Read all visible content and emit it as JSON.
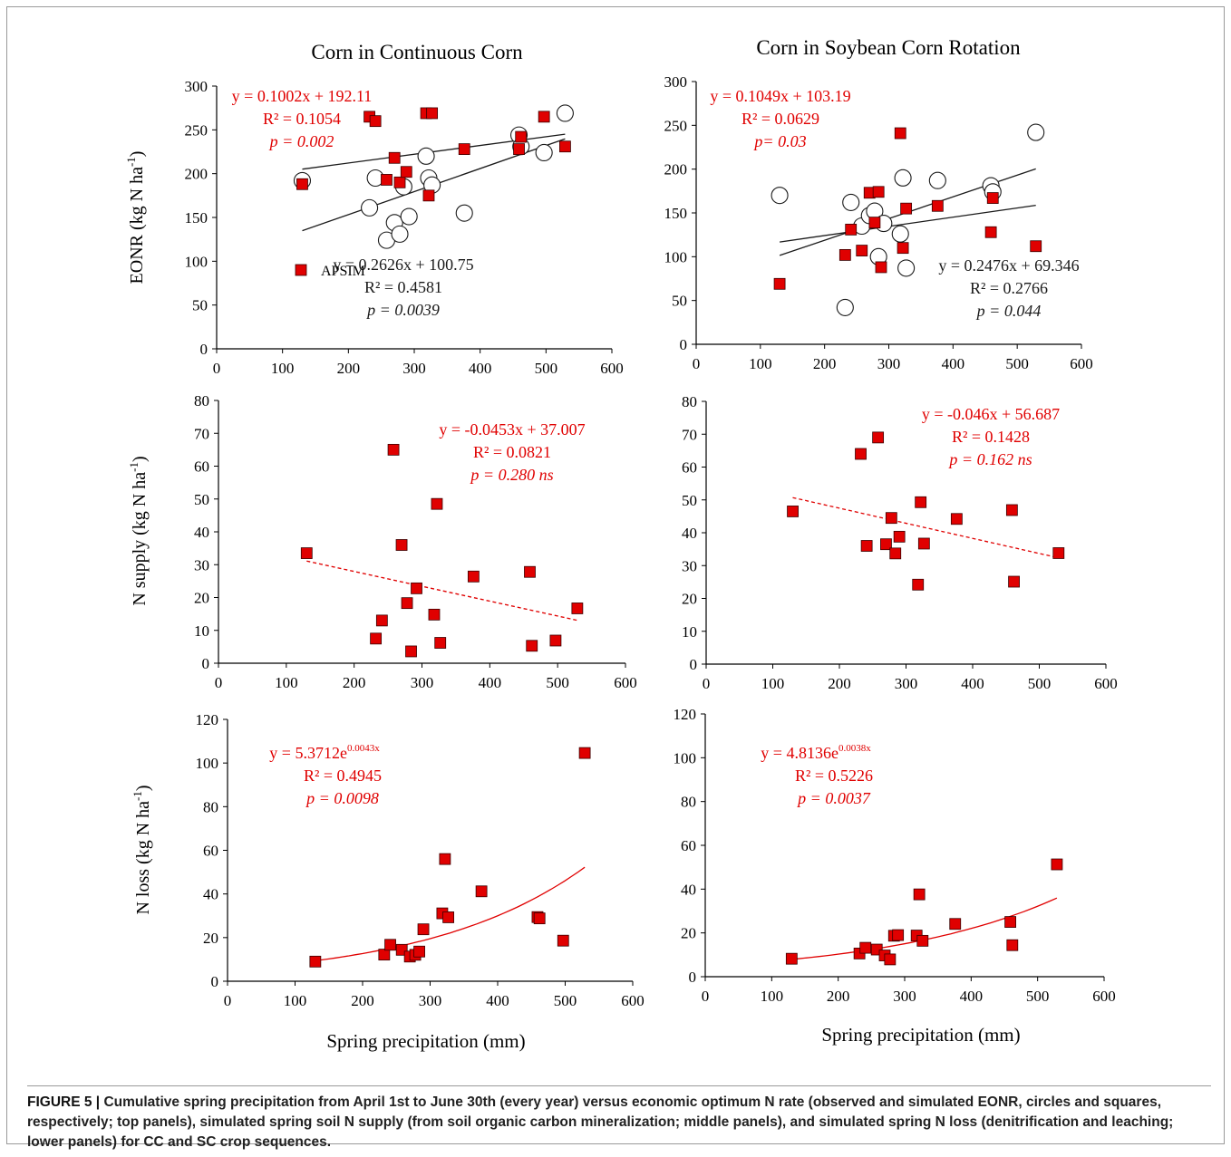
{
  "figure": {
    "column_titles": [
      "Corn in Continuous Corn",
      "Corn in Soybean  Corn Rotation"
    ],
    "row_labels": [
      "EONR (kg N ha-1)",
      "N supply  (kg N ha-1)",
      "N loss  (kg N ha-1)"
    ],
    "xlabel": "Spring precipitation (mm)",
    "legend_label": "APSIM",
    "colors": {
      "simulated": "#e00000",
      "fit_red": "#e00000",
      "fit_black": "#1a1a1a",
      "observed_fill": "#ffffff"
    }
  },
  "caption": {
    "label": "FIGURE 5 |",
    "text": "Cumulative spring precipitation from April 1st to June 30th (every year) versus economic optimum N rate (observed and simulated EONR, circles and squares, respectively; top panels), simulated spring soil N supply (from soil organic carbon mineralization; middle panels), and simulated spring N loss (denitrification and leaching; lower panels) for CC and SC crop sequences."
  },
  "chart_data": [
    {
      "type": "scatter",
      "panel": "CC-EONR",
      "title": "Corn in Continuous Corn",
      "xlabel": "",
      "ylabel": "EONR (kg N ha-1)",
      "xlim": [
        0,
        600
      ],
      "ylim": [
        0,
        300
      ],
      "xticks": [
        0,
        100,
        200,
        300,
        400,
        500,
        600
      ],
      "yticks": [
        0,
        50,
        100,
        150,
        200,
        250,
        300
      ],
      "series": [
        {
          "name": "APSIM",
          "marker": "square",
          "points": [
            [
              130,
              188
            ],
            [
              232,
              265
            ],
            [
              241,
              260
            ],
            [
              258,
              193
            ],
            [
              270,
              218
            ],
            [
              278,
              190
            ],
            [
              288,
              202
            ],
            [
              318,
              269
            ],
            [
              322,
              175
            ],
            [
              327,
              269
            ],
            [
              376,
              228
            ],
            [
              459,
              228
            ],
            [
              462,
              242
            ],
            [
              497,
              265
            ],
            [
              529,
              231
            ]
          ]
        },
        {
          "marker": "circle",
          "points": [
            [
              130,
              192
            ],
            [
              232,
              161
            ],
            [
              241,
              195
            ],
            [
              258,
              124
            ],
            [
              270,
              144
            ],
            [
              278,
              131
            ],
            [
              284,
              185
            ],
            [
              292,
              151
            ],
            [
              318,
              220
            ],
            [
              322,
              195
            ],
            [
              327,
              187
            ],
            [
              376,
              155
            ],
            [
              459,
              244
            ],
            [
              462,
              231
            ],
            [
              497,
              224
            ],
            [
              529,
              269
            ]
          ]
        }
      ],
      "fits": [
        {
          "color": "red",
          "kind": "linear",
          "slope": 0.1002,
          "intercept": 192.11,
          "range": [
            130,
            529
          ],
          "draw": false,
          "label": [
            "y = 0.1002x + 192.11",
            "R² = 0.1054",
            "p = 0.002"
          ]
        },
        {
          "color": "black",
          "kind": "linear",
          "slope": 0.1002,
          "intercept": 192.11,
          "range": [
            130,
            529
          ],
          "draw": true
        },
        {
          "color": "black",
          "kind": "linear",
          "slope": 0.2626,
          "intercept": 100.75,
          "range": [
            130,
            529
          ],
          "draw": true,
          "label": [
            "y = 0.2626x + 100.75",
            "R² = 0.4581",
            "p = 0.0039"
          ]
        }
      ]
    },
    {
      "type": "scatter",
      "panel": "SC-EONR",
      "title": "Corn in Soybean  Corn Rotation",
      "xlabel": "",
      "ylabel": "",
      "xlim": [
        0,
        600
      ],
      "ylim": [
        0,
        300
      ],
      "xticks": [
        0,
        100,
        200,
        300,
        400,
        500,
        600
      ],
      "yticks": [
        0,
        50,
        100,
        150,
        200,
        250,
        300
      ],
      "series": [
        {
          "marker": "square",
          "points": [
            [
              130,
              69
            ],
            [
              232,
              102
            ],
            [
              241,
              131
            ],
            [
              258,
              107
            ],
            [
              270,
              173
            ],
            [
              278,
              139
            ],
            [
              284,
              174
            ],
            [
              288,
              88
            ],
            [
              318,
              241
            ],
            [
              322,
              110
            ],
            [
              327,
              155
            ],
            [
              376,
              158
            ],
            [
              459,
              128
            ],
            [
              462,
              167
            ],
            [
              529,
              112
            ]
          ]
        },
        {
          "marker": "circle",
          "points": [
            [
              130,
              170
            ],
            [
              232,
              42
            ],
            [
              241,
              162
            ],
            [
              258,
              135
            ],
            [
              270,
              147
            ],
            [
              278,
              152
            ],
            [
              284,
              100
            ],
            [
              292,
              138
            ],
            [
              318,
              126
            ],
            [
              322,
              190
            ],
            [
              327,
              87
            ],
            [
              376,
              187
            ],
            [
              459,
              181
            ],
            [
              462,
              174
            ],
            [
              529,
              242
            ]
          ]
        }
      ],
      "fits": [
        {
          "color": "red",
          "kind": "linear",
          "slope": 0.1049,
          "intercept": 103.19,
          "range": [
            130,
            529
          ],
          "draw": false,
          "label": [
            "y = 0.1049x + 103.19",
            "R² = 0.0629",
            "p= 0.03"
          ]
        },
        {
          "color": "black",
          "kind": "linear",
          "slope": 0.1049,
          "intercept": 103.19,
          "range": [
            130,
            529
          ],
          "draw": true
        },
        {
          "color": "black",
          "kind": "linear",
          "slope": 0.2476,
          "intercept": 69.346,
          "range": [
            130,
            529
          ],
          "draw": true,
          "label": [
            "y = 0.2476x + 69.346",
            "R² = 0.2766",
            "p = 0.044"
          ]
        }
      ]
    },
    {
      "type": "scatter",
      "panel": "CC-Nsupply",
      "xlabel": "",
      "ylabel": "N supply  (kg N ha-1)",
      "xlim": [
        0,
        600
      ],
      "ylim": [
        0,
        80
      ],
      "xticks": [
        0,
        100,
        200,
        300,
        400,
        500,
        600
      ],
      "yticks": [
        0,
        10,
        20,
        30,
        40,
        50,
        60,
        70,
        80
      ],
      "series": [
        {
          "marker": "square",
          "points": [
            [
              130,
              33.5
            ],
            [
              232,
              7.5
            ],
            [
              241,
              13
            ],
            [
              258,
              65
            ],
            [
              270,
              36
            ],
            [
              278,
              18.3
            ],
            [
              284,
              3.6
            ],
            [
              292,
              22.8
            ],
            [
              318,
              14.8
            ],
            [
              322,
              48.5
            ],
            [
              327,
              6.2
            ],
            [
              376,
              26.4
            ],
            [
              459,
              27.8
            ],
            [
              462,
              5.3
            ],
            [
              497,
              6.9
            ],
            [
              529,
              16.7
            ]
          ]
        }
      ],
      "fits": [
        {
          "color": "red",
          "kind": "linear",
          "dashed": true,
          "slope": -0.0453,
          "intercept": 37.007,
          "range": [
            130,
            529
          ],
          "draw": true,
          "label": [
            "y = -0.0453x + 37.007",
            "R² = 0.0821",
            "p = 0.280 ns"
          ]
        }
      ]
    },
    {
      "type": "scatter",
      "panel": "SC-Nsupply",
      "xlabel": "",
      "ylabel": "",
      "xlim": [
        0,
        600
      ],
      "ylim": [
        0,
        80
      ],
      "xticks": [
        0,
        100,
        200,
        300,
        400,
        500,
        600
      ],
      "yticks": [
        0,
        10,
        20,
        30,
        40,
        50,
        60,
        70,
        80
      ],
      "series": [
        {
          "marker": "square",
          "points": [
            [
              130,
              46.5
            ],
            [
              232,
              64
            ],
            [
              241,
              36
            ],
            [
              258,
              69
            ],
            [
              270,
              36.5
            ],
            [
              278,
              44.5
            ],
            [
              284,
              33.7
            ],
            [
              290,
              38.8
            ],
            [
              318,
              24.2
            ],
            [
              322,
              49.3
            ],
            [
              327,
              36.7
            ],
            [
              376,
              44.2
            ],
            [
              459,
              46.9
            ],
            [
              462,
              25.1
            ],
            [
              529,
              33.8
            ]
          ]
        }
      ],
      "fits": [
        {
          "color": "red",
          "kind": "linear",
          "dashed": true,
          "slope": -0.046,
          "intercept": 56.687,
          "range": [
            130,
            529
          ],
          "draw": true,
          "label": [
            "y = -0.046x + 56.687",
            "R² = 0.1428",
            "p = 0.162 ns"
          ]
        }
      ]
    },
    {
      "type": "scatter",
      "panel": "CC-Nloss",
      "xlabel": "Spring precipitation (mm)",
      "ylabel": "N loss  (kg N ha-1)",
      "xlim": [
        0,
        600
      ],
      "ylim": [
        0,
        120
      ],
      "xticks": [
        0,
        100,
        200,
        300,
        400,
        500,
        600
      ],
      "yticks": [
        0,
        20,
        40,
        60,
        80,
        100,
        120
      ],
      "series": [
        {
          "marker": "square",
          "points": [
            [
              130,
              9
            ],
            [
              232,
              12.2
            ],
            [
              241,
              16.7
            ],
            [
              258,
              14.4
            ],
            [
              270,
              11.3
            ],
            [
              278,
              12.1
            ],
            [
              284,
              13.6
            ],
            [
              290,
              23.8
            ],
            [
              318,
              31.1
            ],
            [
              322,
              56
            ],
            [
              327,
              29.3
            ],
            [
              376,
              41.2
            ],
            [
              459,
              29.4
            ],
            [
              462,
              28.8
            ],
            [
              497,
              18.6
            ],
            [
              529,
              104.6
            ]
          ]
        }
      ],
      "fits": [
        {
          "color": "red",
          "kind": "exp",
          "a": 5.3712,
          "b": 0.0043,
          "range": [
            130,
            529
          ],
          "draw": true,
          "label": [
            "y = 5.3712e",
            "0.0043x",
            "R² = 0.4945",
            "p = 0.0098"
          ]
        }
      ]
    },
    {
      "type": "scatter",
      "panel": "SC-Nloss",
      "xlabel": "Spring precipitation (mm)",
      "ylabel": "",
      "xlim": [
        0,
        600
      ],
      "ylim": [
        0,
        120
      ],
      "xticks": [
        0,
        100,
        200,
        300,
        400,
        500,
        600
      ],
      "yticks": [
        0,
        20,
        40,
        60,
        80,
        100,
        120
      ],
      "series": [
        {
          "marker": "square",
          "points": [
            [
              130,
              8.2
            ],
            [
              232,
              10.6
            ],
            [
              241,
              13.2
            ],
            [
              258,
              12.4
            ],
            [
              270,
              9.7
            ],
            [
              278,
              7.9
            ],
            [
              284,
              18.7
            ],
            [
              290,
              19
            ],
            [
              318,
              18.8
            ],
            [
              322,
              37.6
            ],
            [
              327,
              16.4
            ],
            [
              376,
              24.1
            ],
            [
              459,
              25
            ],
            [
              462,
              14.4
            ],
            [
              529,
              51.3
            ]
          ]
        }
      ],
      "fits": [
        {
          "color": "red",
          "kind": "exp",
          "a": 4.8136,
          "b": 0.0038,
          "range": [
            130,
            529
          ],
          "draw": true,
          "label": [
            "y = 4.8136e",
            "0.0038x",
            "R² = 0.5226",
            "p = 0.0037"
          ]
        }
      ]
    }
  ]
}
